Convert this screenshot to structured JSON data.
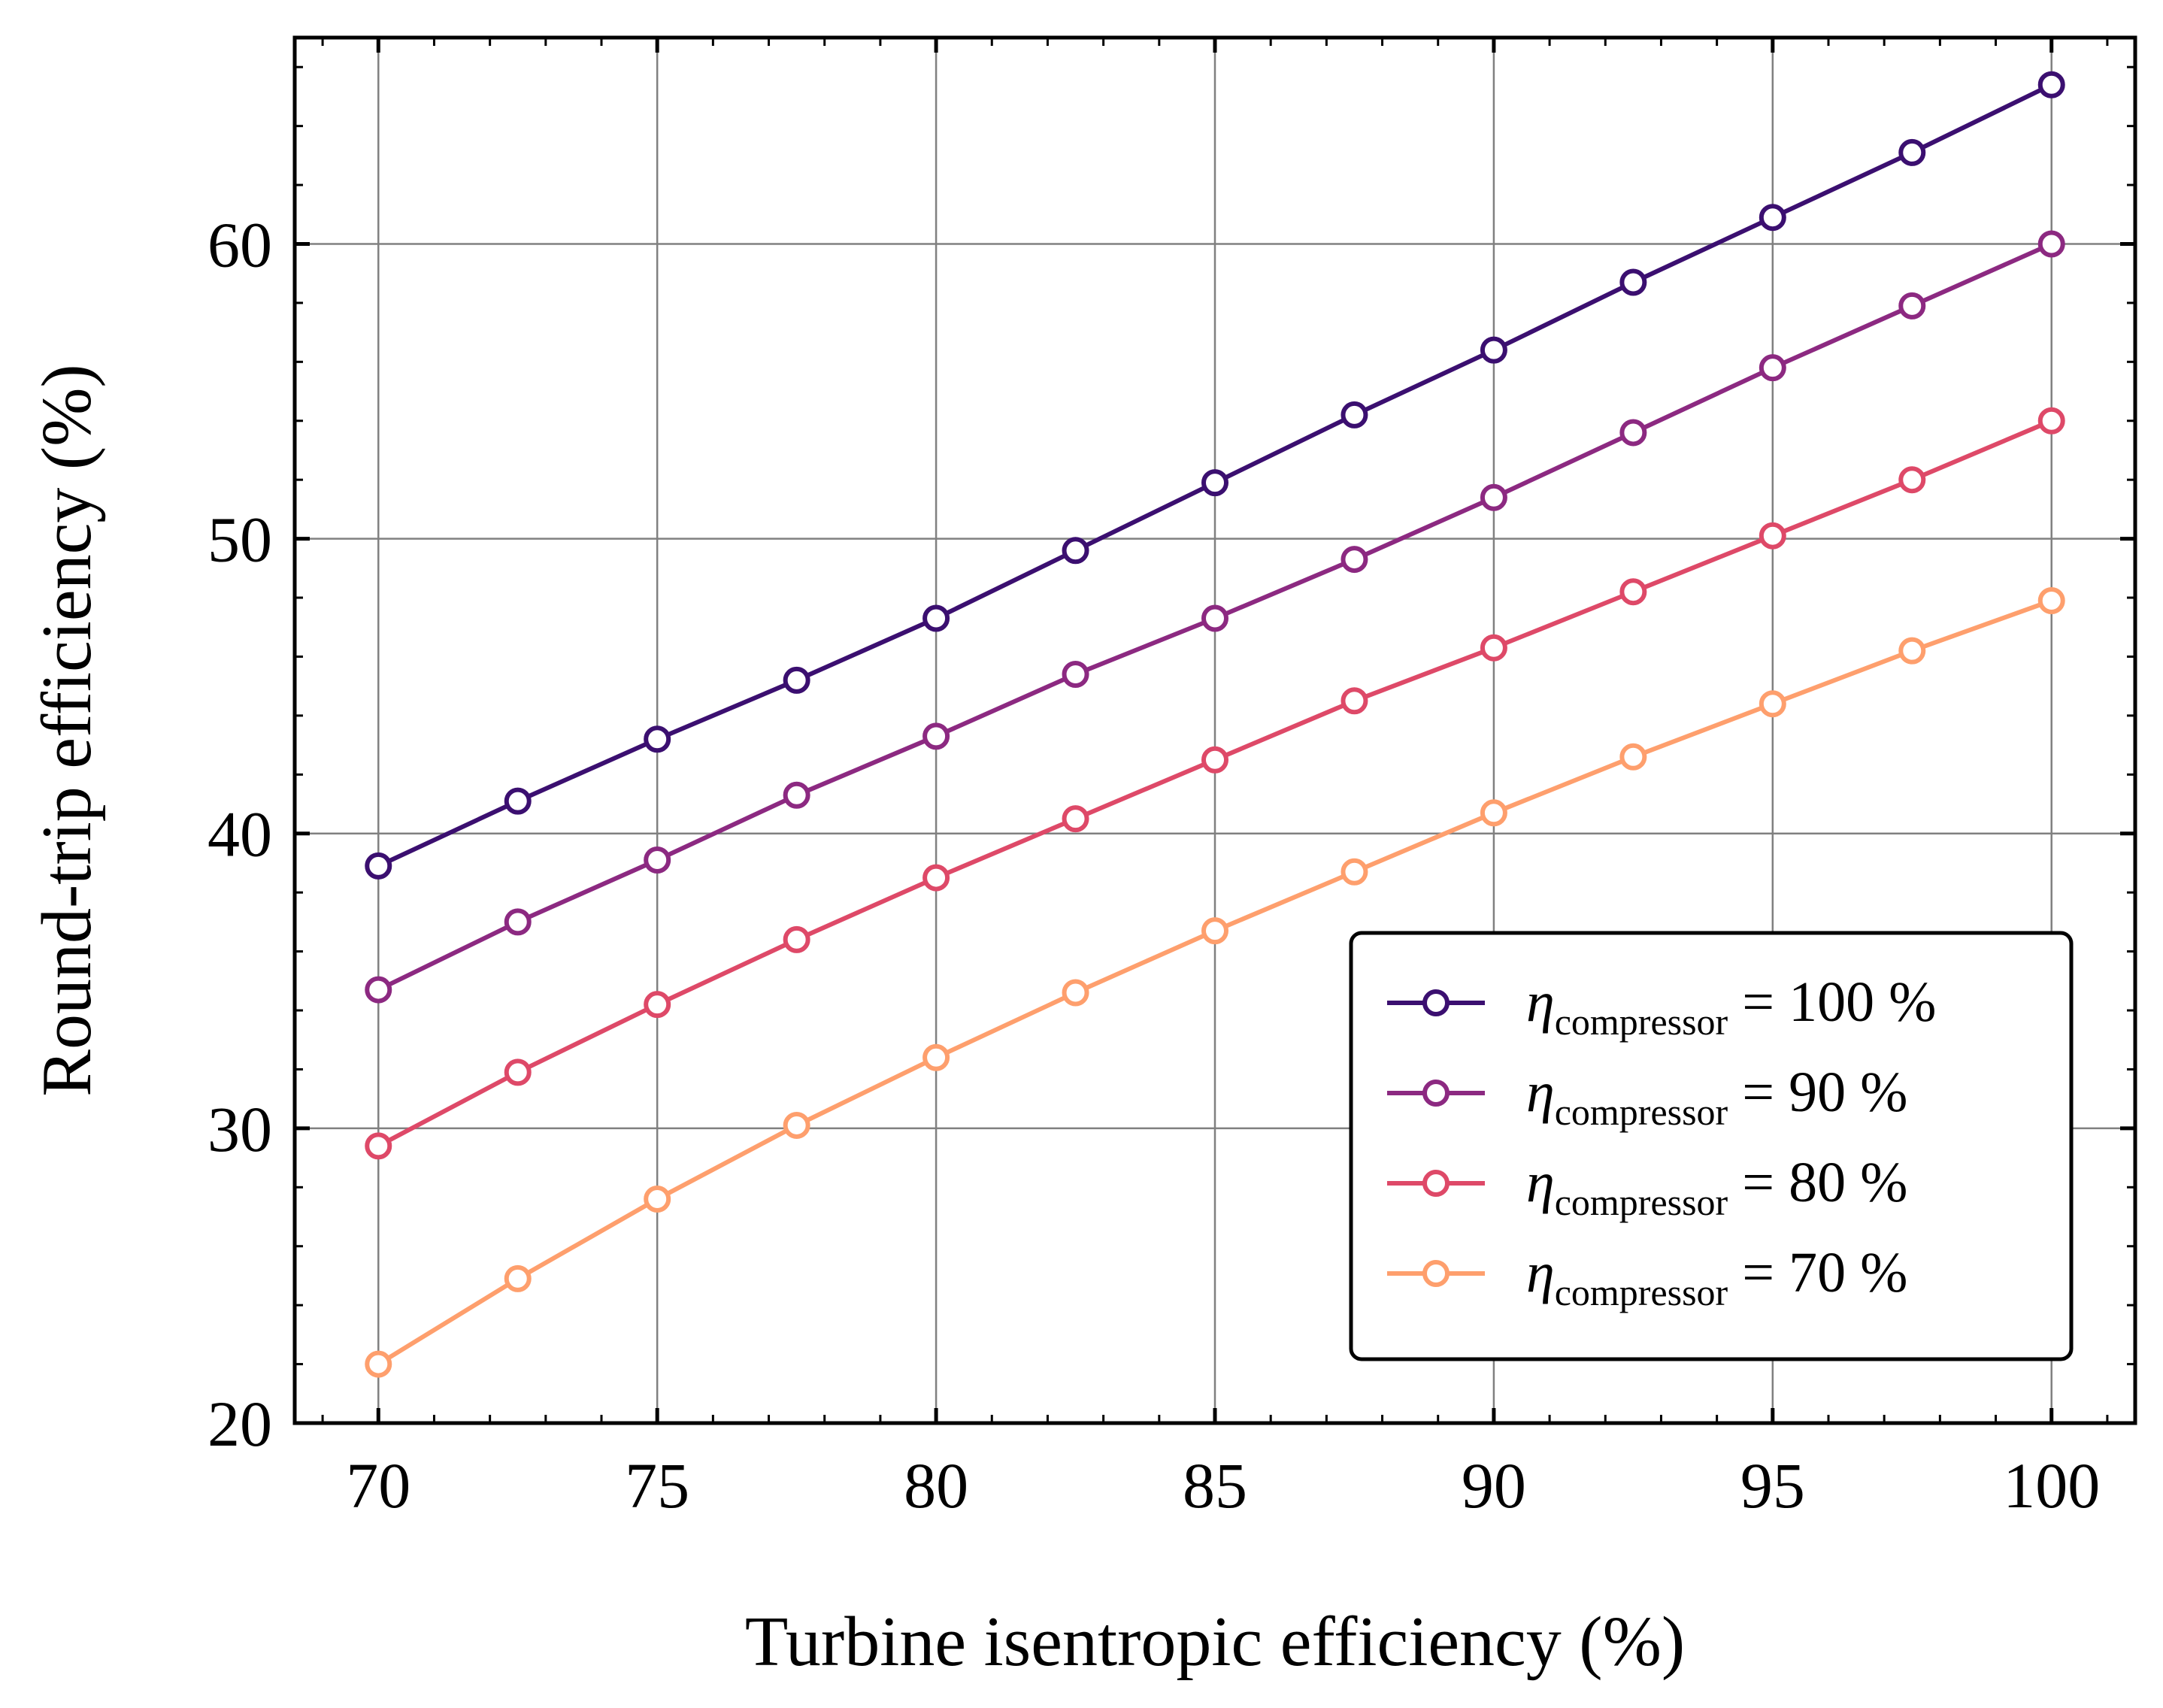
{
  "chart_data": {
    "type": "line",
    "title": "",
    "xlabel": "Turbine isentropic efficiency (%)",
    "ylabel": "Round-trip efficiency (%)",
    "xlim": [
      68.5,
      101.5
    ],
    "ylim": [
      20,
      67
    ],
    "xticks": [
      70,
      75,
      80,
      85,
      90,
      95,
      100
    ],
    "yticks": [
      20,
      30,
      40,
      50,
      60
    ],
    "grid": true,
    "legend_position": "lower-right",
    "x": [
      70,
      72.5,
      75,
      77.5,
      80,
      82.5,
      85,
      87.5,
      90,
      92.5,
      95,
      97.5,
      100
    ],
    "series": [
      {
        "name": "η_compressor = 100 %",
        "legend": {
          "symbol": "η",
          "sub": "compressor",
          "rest": " = 100 %"
        },
        "color": "#3b0f70",
        "values": [
          38.9,
          41.1,
          43.2,
          45.2,
          47.3,
          49.6,
          51.9,
          54.2,
          56.4,
          58.7,
          60.9,
          63.1,
          65.4
        ]
      },
      {
        "name": "η_compressor = 90 %",
        "legend": {
          "symbol": "η",
          "sub": "compressor",
          "rest": " = 90 %"
        },
        "color": "#8c2981",
        "values": [
          34.7,
          37.0,
          39.1,
          41.3,
          43.3,
          45.4,
          47.3,
          49.3,
          51.4,
          53.6,
          55.8,
          57.9,
          60.0
        ]
      },
      {
        "name": "η_compressor = 80 %",
        "legend": {
          "symbol": "η",
          "sub": "compressor",
          "rest": " = 80 %"
        },
        "color": "#de4968",
        "values": [
          29.4,
          31.9,
          34.2,
          36.4,
          38.5,
          40.5,
          42.5,
          44.5,
          46.3,
          48.2,
          50.1,
          52.0,
          54.0
        ]
      },
      {
        "name": "η_compressor = 70 %",
        "legend": {
          "symbol": "η",
          "sub": "compressor",
          "rest": " = 70 %"
        },
        "color": "#fe9f6d",
        "values": [
          22.0,
          24.9,
          27.6,
          30.1,
          32.4,
          34.6,
          36.7,
          38.7,
          40.7,
          42.6,
          44.4,
          46.2,
          47.9
        ]
      }
    ]
  }
}
